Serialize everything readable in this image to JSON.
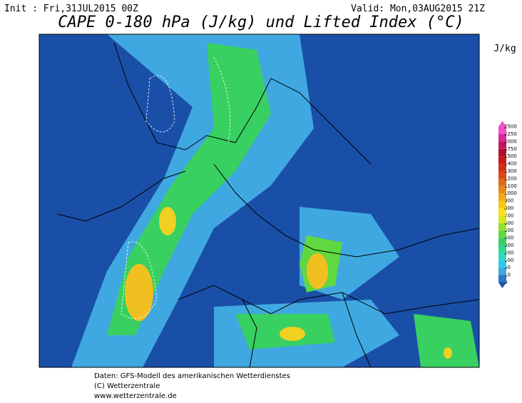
{
  "header": {
    "init": "Init : Fri,31JUL2015 00Z",
    "valid": "Valid: Mon,03AUG2015 21Z",
    "title": "CAPE 0-180 hPa (J/kg) und Lifted Index (°C)"
  },
  "legend": {
    "unit": "J/kg",
    "levels": [
      0,
      10,
      50,
      100,
      200,
      300,
      400,
      500,
      600,
      700,
      800,
      900,
      1000,
      1100,
      1200,
      1300,
      1400,
      1500,
      1750,
      2000,
      2250,
      2500
    ],
    "colors": [
      "#1a4fa8",
      "#2a78c8",
      "#40a8e0",
      "#30c8e8",
      "#30d8c0",
      "#30d890",
      "#38d060",
      "#60d840",
      "#98e030",
      "#d8e820",
      "#f8e020",
      "#f8c818",
      "#f0a818",
      "#e88818",
      "#e06818",
      "#d84818",
      "#d03018",
      "#c81818",
      "#b01030",
      "#c01860",
      "#d82898",
      "#f050c8"
    ]
  },
  "footer": {
    "lines": [
      "Daten: GFS-Modell des amerikanischen Wetterdienstes",
      "(C) Wetterzentrale",
      "www.wetterzentrale.de"
    ]
  }
}
